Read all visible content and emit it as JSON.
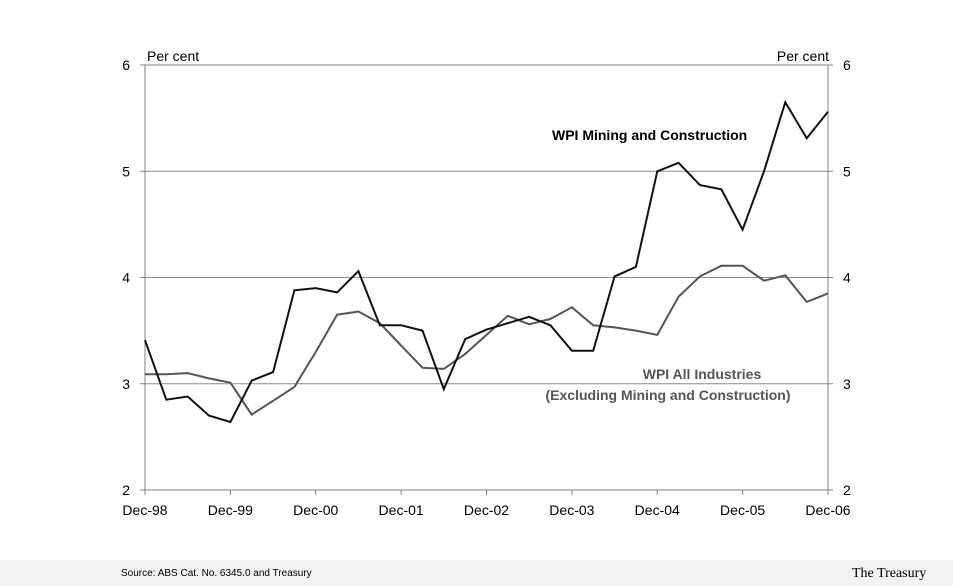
{
  "chart_data": {
    "type": "line",
    "title": "",
    "xlabel": "",
    "ylabel_left": "Per cent",
    "ylabel_right": "Per cent",
    "ylim": [
      2,
      6
    ],
    "yticks": [
      2,
      3,
      4,
      5,
      6
    ],
    "x_labels": [
      "Dec-98",
      "Dec-99",
      "Dec-00",
      "Dec-01",
      "Dec-02",
      "Dec-03",
      "Dec-04",
      "Dec-05",
      "Dec-06"
    ],
    "x": [
      "Dec-98",
      "Mar-99",
      "Jun-99",
      "Sep-99",
      "Dec-99",
      "Mar-00",
      "Jun-00",
      "Sep-00",
      "Dec-00",
      "Mar-01",
      "Jun-01",
      "Sep-01",
      "Dec-01",
      "Mar-02",
      "Jun-02",
      "Sep-02",
      "Dec-02",
      "Mar-03",
      "Jun-03",
      "Sep-03",
      "Dec-03",
      "Mar-04",
      "Jun-04",
      "Sep-04",
      "Dec-04",
      "Mar-05",
      "Jun-05",
      "Sep-05",
      "Dec-05",
      "Mar-06",
      "Jun-06",
      "Sep-06",
      "Dec-06"
    ],
    "grid": true,
    "series": [
      {
        "name": "WPI Mining and Construction",
        "color": "#111111",
        "values": [
          3.41,
          2.85,
          2.88,
          2.7,
          2.64,
          3.03,
          3.11,
          3.88,
          3.9,
          3.86,
          4.06,
          3.55,
          3.55,
          3.5,
          2.95,
          3.42,
          3.51,
          3.57,
          3.63,
          3.55,
          3.31,
          3.31,
          4.01,
          4.1,
          5.0,
          5.08,
          4.87,
          4.83,
          4.45,
          5.0,
          5.65,
          5.31,
          5.56
        ]
      },
      {
        "name": "WPI All Industries",
        "name_line2": "(Excluding Mining and Construction)",
        "color": "#555555",
        "values": [
          3.09,
          3.09,
          3.1,
          3.05,
          3.01,
          2.71,
          2.84,
          2.97,
          3.3,
          3.65,
          3.68,
          3.57,
          3.36,
          3.15,
          3.14,
          3.28,
          3.46,
          3.64,
          3.56,
          3.61,
          3.72,
          3.55,
          3.53,
          3.5,
          3.46,
          3.82,
          4.01,
          4.11,
          4.11,
          3.97,
          4.02,
          3.77,
          3.85
        ]
      }
    ]
  },
  "footer": {
    "source": "Source: ABS Cat. No. 6345.0 and Treasury",
    "brand": "The Treasury"
  }
}
